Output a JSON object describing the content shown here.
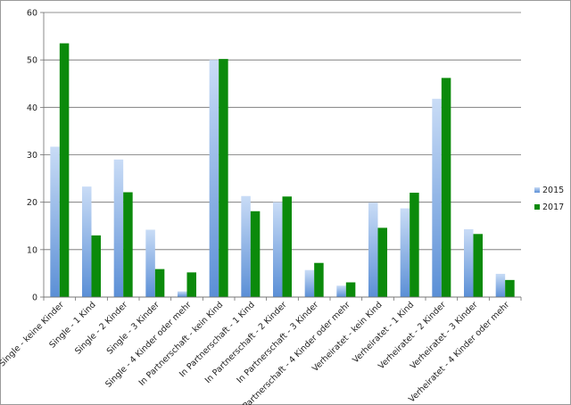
{
  "chart_data": {
    "type": "bar",
    "title": "",
    "xlabel": "",
    "ylabel": "",
    "ylim": [
      0,
      60
    ],
    "yticks": [
      0,
      10,
      20,
      30,
      40,
      50,
      60
    ],
    "grid": true,
    "legend_position": "right",
    "categories": [
      "Single - keine Kinder",
      "Single - 1 Kind",
      "Single - 2 Kinder",
      "Single - 3 Kinder",
      "Single - 4 Kinder oder mehr",
      "In Partnerschaft - kein Kind",
      "In Partnerschaft - 1 Kind",
      "In Partnerschaft - 2 Kinder",
      "In Partnerschaft - 3 Kinder",
      "In Partnerschaft - 4 Kinder oder mehr",
      "Verheiratet - kein Kind",
      "Verheiratet - 1 Kind",
      "Verheiratet - 2 Kinder",
      "Verheiratet - 3 Kinder",
      "Verheiratet - 4 Kinder oder mehr"
    ],
    "series": [
      {
        "name": "2015",
        "color": "#6fa0dc",
        "values": [
          31.7,
          23.3,
          29.0,
          14.2,
          1.2,
          50.0,
          21.3,
          20.0,
          5.7,
          2.4,
          19.9,
          18.7,
          41.8,
          14.3,
          4.9
        ]
      },
      {
        "name": "2017",
        "color": "#0b8a0b",
        "values": [
          53.5,
          13.0,
          22.1,
          5.9,
          5.2,
          50.2,
          18.1,
          21.2,
          7.2,
          3.1,
          14.6,
          22.0,
          46.2,
          13.3,
          3.6
        ]
      }
    ]
  }
}
